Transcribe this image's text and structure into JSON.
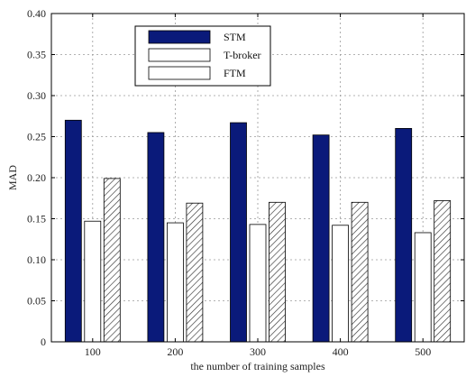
{
  "chart_data": {
    "type": "bar",
    "title": "",
    "xlabel": "the number of training samples",
    "ylabel": "MAD",
    "categories": [
      "100",
      "200",
      "300",
      "400",
      "500"
    ],
    "series": [
      {
        "name": "STM",
        "values": [
          0.27,
          0.255,
          0.267,
          0.252,
          0.26
        ],
        "color": "#0a1a7a",
        "pattern": "solid"
      },
      {
        "name": "T-broker",
        "values": [
          0.147,
          0.145,
          0.143,
          0.142,
          0.133
        ],
        "color": "#ffffff",
        "pattern": "empty"
      },
      {
        "name": "FTM",
        "values": [
          0.199,
          0.169,
          0.17,
          0.17,
          0.172
        ],
        "color": "#ffffff",
        "pattern": "hatch"
      }
    ],
    "ylim": [
      0,
      0.4
    ],
    "yticks": [
      "0",
      "0.05",
      "0.10",
      "0.15",
      "0.20",
      "0.25",
      "0.30",
      "0.35",
      "0.40"
    ],
    "grid": true,
    "legend_position": "top-left"
  }
}
